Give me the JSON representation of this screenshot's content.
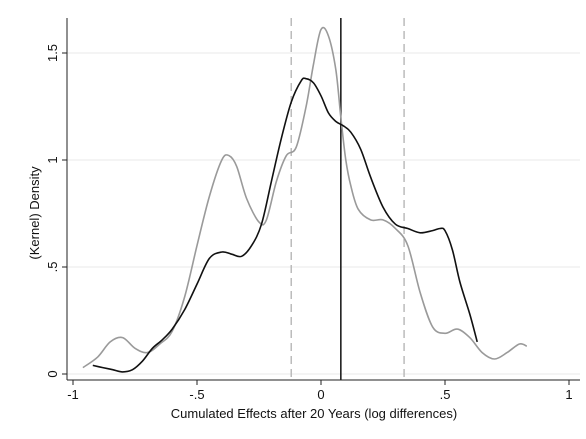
{
  "chart_data": {
    "type": "line",
    "title": "",
    "xlabel": "Cumulated Effects after 20 Years (log differences)",
    "ylabel": "(Kernel) Density",
    "xlim": [
      -1.02,
      1.02
    ],
    "ylim": [
      -0.02,
      1.7
    ],
    "x_ticks": [
      -1,
      -0.5,
      0,
      0.5,
      1
    ],
    "x_tick_labels": [
      "-1",
      "-.5",
      "0",
      ".5",
      "1"
    ],
    "y_ticks": [
      0,
      0.5,
      1,
      1.5
    ],
    "y_tick_labels": [
      "0",
      ".5",
      "1",
      "1.5"
    ],
    "grid": "horizontal",
    "legend": "none",
    "series": [
      {
        "color": "#9a9a9a",
        "x": [
          -0.96,
          -0.9,
          -0.85,
          -0.8,
          -0.75,
          -0.7,
          -0.65,
          -0.6,
          -0.55,
          -0.5,
          -0.45,
          -0.4,
          -0.37,
          -0.34,
          -0.3,
          -0.25,
          -0.22,
          -0.18,
          -0.14,
          -0.1,
          -0.06,
          -0.03,
          0.0,
          0.03,
          0.06,
          0.08,
          0.1,
          0.12,
          0.15,
          0.2,
          0.25,
          0.3,
          0.35,
          0.4,
          0.45,
          0.5,
          0.55,
          0.6,
          0.65,
          0.7,
          0.75,
          0.8,
          0.83
        ],
        "y": [
          0.03,
          0.08,
          0.15,
          0.17,
          0.12,
          0.1,
          0.14,
          0.2,
          0.36,
          0.6,
          0.83,
          1.0,
          1.02,
          0.97,
          0.82,
          0.71,
          0.72,
          0.9,
          1.02,
          1.06,
          1.25,
          1.45,
          1.61,
          1.58,
          1.42,
          1.2,
          1.0,
          0.88,
          0.77,
          0.72,
          0.72,
          0.68,
          0.6,
          0.38,
          0.22,
          0.19,
          0.21,
          0.17,
          0.1,
          0.07,
          0.1,
          0.14,
          0.13
        ]
      },
      {
        "color": "#111111",
        "x": [
          -0.92,
          -0.88,
          -0.84,
          -0.8,
          -0.76,
          -0.72,
          -0.68,
          -0.64,
          -0.6,
          -0.55,
          -0.5,
          -0.45,
          -0.4,
          -0.36,
          -0.32,
          -0.28,
          -0.24,
          -0.2,
          -0.16,
          -0.12,
          -0.08,
          -0.06,
          -0.03,
          0.0,
          0.03,
          0.06,
          0.09,
          0.12,
          0.16,
          0.2,
          0.25,
          0.3,
          0.35,
          0.4,
          0.45,
          0.48,
          0.5,
          0.53,
          0.56,
          0.6,
          0.63
        ],
        "y": [
          0.04,
          0.03,
          0.02,
          0.01,
          0.02,
          0.06,
          0.12,
          0.16,
          0.21,
          0.3,
          0.42,
          0.54,
          0.57,
          0.56,
          0.55,
          0.6,
          0.7,
          0.9,
          1.1,
          1.27,
          1.37,
          1.38,
          1.36,
          1.3,
          1.22,
          1.18,
          1.16,
          1.13,
          1.05,
          0.92,
          0.78,
          0.7,
          0.68,
          0.66,
          0.67,
          0.68,
          0.67,
          0.58,
          0.43,
          0.28,
          0.15
        ]
      }
    ],
    "reference_lines": [
      {
        "x": 0.08,
        "style": "solid",
        "color": "#111111"
      },
      {
        "x": -0.12,
        "style": "dashed",
        "color": "#bbbbbb"
      },
      {
        "x": 0.335,
        "style": "dashed",
        "color": "#bbbbbb"
      }
    ]
  }
}
